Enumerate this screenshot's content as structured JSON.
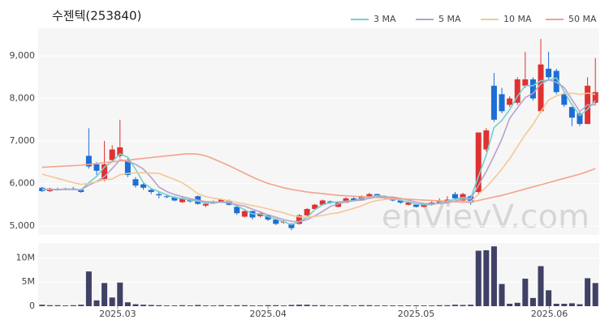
{
  "chart_data": [
    {
      "type": "candlestick",
      "title": "수젠텍(253840)",
      "watermark": "enVievV.com",
      "up_color": "#e03131",
      "down_color": "#1c6ed4",
      "grid": true,
      "legend": "top-right",
      "xlim": [
        -0.5,
        71.5
      ],
      "ylim": [
        4790,
        9650
      ],
      "yticks": [
        {
          "value": 5000,
          "label": "5,000"
        },
        {
          "value": 6000,
          "label": "6,000"
        },
        {
          "value": 7000,
          "label": "7,000"
        },
        {
          "value": 8000,
          "label": "8,000"
        },
        {
          "value": 9000,
          "label": "9,000"
        }
      ],
      "open": [
        5900,
        5820,
        5870,
        5850,
        5880,
        5850,
        6650,
        6450,
        6100,
        6550,
        6650,
        6550,
        6100,
        5980,
        5850,
        5750,
        5700,
        5680,
        5560,
        5620,
        5700,
        5480,
        5540,
        5560,
        5600,
        5450,
        5220,
        5350,
        5230,
        5250,
        5150,
        5080,
        5050,
        5050,
        5250,
        5400,
        5500,
        5580,
        5450,
        5550,
        5650,
        5600,
        5700,
        5750,
        5700,
        5640,
        5600,
        5500,
        5500,
        5450,
        5500,
        5550,
        5550,
        5750,
        5600,
        5700,
        5800,
        6800,
        8300,
        8100,
        7850,
        7900,
        8300,
        8450,
        7700,
        8700,
        8650,
        8100,
        7800,
        7650,
        7400,
        7900
      ],
      "high": [
        5920,
        5900,
        5900,
        5900,
        5920,
        5870,
        7300,
        6500,
        7000,
        6900,
        7500,
        6600,
        6150,
        6000,
        5880,
        5800,
        5750,
        5700,
        5680,
        5650,
        5720,
        5550,
        5600,
        5650,
        5620,
        5460,
        5400,
        5360,
        5350,
        5260,
        5170,
        5150,
        5070,
        5280,
        5420,
        5520,
        5620,
        5600,
        5580,
        5680,
        5680,
        5720,
        5780,
        5760,
        5720,
        5660,
        5620,
        5570,
        5520,
        5530,
        5580,
        5650,
        5700,
        5800,
        5780,
        5720,
        7200,
        7300,
        8600,
        8250,
        8050,
        8500,
        9100,
        8500,
        9400,
        9100,
        8700,
        8150,
        7800,
        7700,
        8500,
        8950
      ],
      "low": [
        5800,
        5800,
        5830,
        5840,
        5840,
        5780,
        6350,
        6200,
        6050,
        6500,
        6600,
        6150,
        5900,
        5850,
        5750,
        5650,
        5650,
        5580,
        5540,
        5550,
        5500,
        5440,
        5520,
        5540,
        5480,
        5260,
        5200,
        5150,
        5200,
        5120,
        5020,
        5050,
        4900,
        5030,
        5230,
        5380,
        5480,
        5520,
        5440,
        5540,
        5580,
        5590,
        5690,
        5680,
        5630,
        5580,
        5520,
        5480,
        5430,
        5440,
        5480,
        5530,
        5530,
        5620,
        5580,
        5500,
        5750,
        6750,
        7450,
        7650,
        7800,
        7850,
        8250,
        7950,
        7650,
        8450,
        8100,
        7800,
        7350,
        7350,
        7400,
        7850
      ],
      "close": [
        5820,
        5880,
        5850,
        5880,
        5860,
        5800,
        6400,
        6300,
        6450,
        6800,
        6850,
        6200,
        5950,
        5900,
        5800,
        5720,
        5680,
        5600,
        5650,
        5580,
        5520,
        5520,
        5560,
        5620,
        5500,
        5300,
        5350,
        5200,
        5300,
        5150,
        5050,
        5100,
        4950,
        5250,
        5400,
        5500,
        5600,
        5550,
        5550,
        5650,
        5600,
        5700,
        5750,
        5700,
        5650,
        5600,
        5550,
        5550,
        5450,
        5500,
        5550,
        5600,
        5620,
        5650,
        5750,
        5550,
        7200,
        7250,
        7500,
        7700,
        8000,
        8450,
        8450,
        8000,
        8800,
        8500,
        8150,
        7850,
        7550,
        7400,
        8300,
        8150
      ],
      "series": [
        {
          "name": "3 MA",
          "color": "#74cfcb",
          "values": [
            5850,
            5860,
            5850,
            5870,
            5863,
            5847,
            6020,
            6167,
            6383,
            6517,
            6700,
            6617,
            6333,
            6017,
            5883,
            5807,
            5733,
            5667,
            5643,
            5610,
            5583,
            5540,
            5533,
            5567,
            5560,
            5473,
            5383,
            5283,
            5283,
            5217,
            5167,
            5100,
            5033,
            5100,
            5200,
            5383,
            5500,
            5550,
            5567,
            5583,
            5600,
            5650,
            5683,
            5717,
            5700,
            5650,
            5600,
            5567,
            5517,
            5500,
            5500,
            5550,
            5590,
            5623,
            5673,
            5650,
            6167,
            6667,
            7317,
            7483,
            7733,
            8050,
            8300,
            8300,
            8417,
            8433,
            8483,
            8167,
            7850,
            7600,
            7750,
            7950
          ]
        },
        {
          "name": "5 MA",
          "color": "#b7a2cd",
          "values": [
            5870,
            5860,
            5860,
            5860,
            5858,
            5854,
            5958,
            6048,
            6162,
            6350,
            6560,
            6520,
            6450,
            6340,
            6140,
            5914,
            5810,
            5740,
            5690,
            5646,
            5606,
            5574,
            5566,
            5560,
            5544,
            5500,
            5466,
            5394,
            5330,
            5260,
            5210,
            5150,
            5110,
            5100,
            5150,
            5240,
            5340,
            5460,
            5520,
            5570,
            5590,
            5610,
            5650,
            5680,
            5680,
            5680,
            5650,
            5610,
            5560,
            5530,
            5520,
            5530,
            5544,
            5584,
            5634,
            5634,
            5954,
            6280,
            6650,
            7040,
            7530,
            7780,
            8020,
            8120,
            8340,
            8440,
            8380,
            8260,
            7970,
            7690,
            7850,
            7850
          ]
        },
        {
          "name": "10 MA",
          "color": "#f3c894",
          "values": [
            6220,
            6170,
            6120,
            6070,
            6020,
            5980,
            6000,
            6040,
            6090,
            6104,
            6207,
            6239,
            6249,
            6251,
            6245,
            6237,
            6165,
            6095,
            6015,
            5893,
            5760,
            5692,
            5653,
            5625,
            5595,
            5553,
            5520,
            5480,
            5445,
            5402,
            5355,
            5313,
            5252,
            5215,
            5205,
            5225,
            5250,
            5285,
            5310,
            5360,
            5415,
            5475,
            5555,
            5600,
            5625,
            5635,
            5630,
            5630,
            5620,
            5605,
            5600,
            5590,
            5577,
            5572,
            5582,
            5577,
            5742,
            5912,
            6117,
            6337,
            6582,
            6867,
            7150,
            7385,
            7690,
            7965,
            8060,
            8120,
            8125,
            8095,
            8125,
            8095
          ]
        },
        {
          "name": "50 MA",
          "color": "#f4a28c",
          "values": [
            6380,
            6390,
            6400,
            6410,
            6420,
            6430,
            6450,
            6470,
            6490,
            6510,
            6530,
            6550,
            6570,
            6590,
            6610,
            6630,
            6650,
            6670,
            6690,
            6700,
            6690,
            6650,
            6580,
            6500,
            6420,
            6330,
            6240,
            6150,
            6070,
            6000,
            5950,
            5900,
            5860,
            5830,
            5800,
            5780,
            5760,
            5740,
            5720,
            5710,
            5700,
            5690,
            5680,
            5670,
            5660,
            5650,
            5640,
            5630,
            5620,
            5610,
            5600,
            5590,
            5580,
            5570,
            5560,
            5560,
            5600,
            5640,
            5680,
            5720,
            5770,
            5820,
            5870,
            5920,
            5970,
            6020,
            6070,
            6120,
            6170,
            6220,
            6280,
            6350
          ]
        }
      ]
    },
    {
      "type": "bar",
      "color": "#3f4165",
      "xlim": [
        -0.5,
        71.5
      ],
      "ylim": [
        0,
        13100000
      ],
      "yticks": [
        0,
        {
          "value": 5000000,
          "label": "5M"
        },
        {
          "value": 10000000,
          "label": "10M"
        }
      ],
      "xticks": [
        {
          "value": 9.7,
          "label": "2025.03"
        },
        {
          "value": 29,
          "label": "2025.04"
        },
        {
          "value": 48,
          "label": "2025.05"
        },
        {
          "value": 65.1,
          "label": "2025.06"
        }
      ],
      "values": [
        300000,
        200000,
        200000,
        150000,
        200000,
        300000,
        7200000,
        1200000,
        4800000,
        1800000,
        4900000,
        800000,
        400000,
        300000,
        250000,
        200000,
        150000,
        150000,
        200000,
        150000,
        250000,
        150000,
        150000,
        200000,
        150000,
        200000,
        200000,
        150000,
        150000,
        200000,
        200000,
        150000,
        250000,
        300000,
        300000,
        200000,
        200000,
        150000,
        150000,
        200000,
        150000,
        200000,
        200000,
        150000,
        150000,
        150000,
        150000,
        150000,
        150000,
        150000,
        150000,
        200000,
        200000,
        300000,
        250000,
        300000,
        11500000,
        11600000,
        12400000,
        4600000,
        500000,
        700000,
        5700000,
        1700000,
        8300000,
        3300000,
        500000,
        500000,
        600000,
        400000,
        5800000,
        4800000
      ]
    }
  ]
}
